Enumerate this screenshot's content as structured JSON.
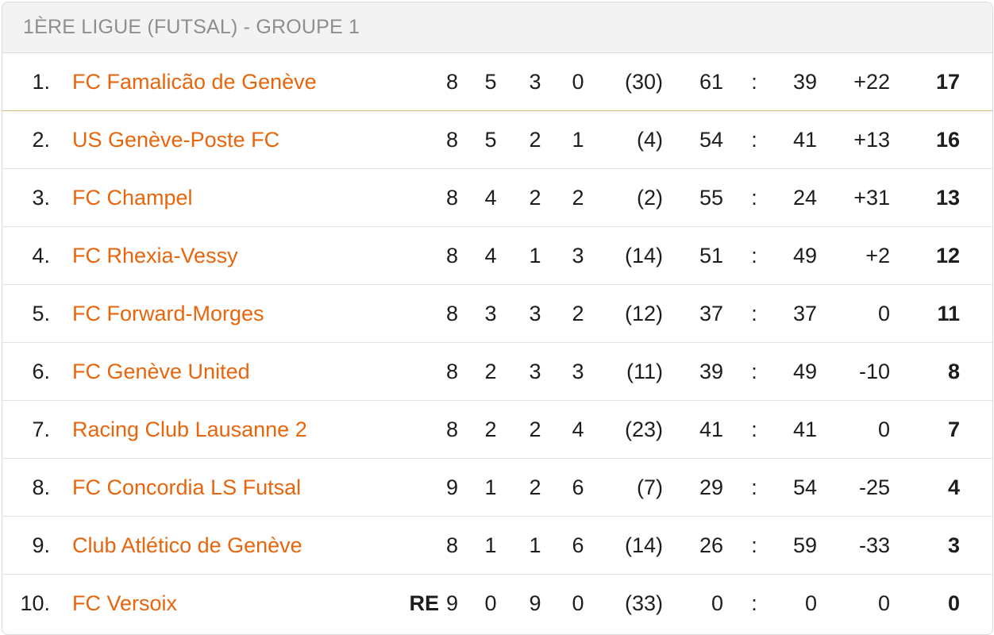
{
  "header": {
    "title": "1ÈRE LIGUE (FUTSAL) - GROUPE 1"
  },
  "colors": {
    "team_link": "#e8650c",
    "header_text": "#8e8e8e",
    "header_bg": "#f3f3f3",
    "first_row_divider": "#d3b77a"
  },
  "standings": [
    {
      "rank": "1.",
      "team": "FC Famalicão de Genève",
      "badge": "",
      "played": "8",
      "won": "5",
      "drawn": "3",
      "lost": "0",
      "fair_play": "(30)",
      "goals_for": "61",
      "separator": ":",
      "goals_against": "39",
      "goal_diff": "+22",
      "points": "17"
    },
    {
      "rank": "2.",
      "team": "US Genève-Poste FC",
      "badge": "",
      "played": "8",
      "won": "5",
      "drawn": "2",
      "lost": "1",
      "fair_play": "(4)",
      "goals_for": "54",
      "separator": ":",
      "goals_against": "41",
      "goal_diff": "+13",
      "points": "16"
    },
    {
      "rank": "3.",
      "team": "FC Champel",
      "badge": "",
      "played": "8",
      "won": "4",
      "drawn": "2",
      "lost": "2",
      "fair_play": "(2)",
      "goals_for": "55",
      "separator": ":",
      "goals_against": "24",
      "goal_diff": "+31",
      "points": "13"
    },
    {
      "rank": "4.",
      "team": "FC Rhexia-Vessy",
      "badge": "",
      "played": "8",
      "won": "4",
      "drawn": "1",
      "lost": "3",
      "fair_play": "(14)",
      "goals_for": "51",
      "separator": ":",
      "goals_against": "49",
      "goal_diff": "+2",
      "points": "12"
    },
    {
      "rank": "5.",
      "team": "FC Forward-Morges",
      "badge": "",
      "played": "8",
      "won": "3",
      "drawn": "3",
      "lost": "2",
      "fair_play": "(12)",
      "goals_for": "37",
      "separator": ":",
      "goals_against": "37",
      "goal_diff": "0",
      "points": "11"
    },
    {
      "rank": "6.",
      "team": "FC Genève United",
      "badge": "",
      "played": "8",
      "won": "2",
      "drawn": "3",
      "lost": "3",
      "fair_play": "(11)",
      "goals_for": "39",
      "separator": ":",
      "goals_against": "49",
      "goal_diff": "-10",
      "points": "8"
    },
    {
      "rank": "7.",
      "team": "Racing Club Lausanne 2",
      "badge": "",
      "played": "8",
      "won": "2",
      "drawn": "2",
      "lost": "4",
      "fair_play": "(23)",
      "goals_for": "41",
      "separator": ":",
      "goals_against": "41",
      "goal_diff": "0",
      "points": "7"
    },
    {
      "rank": "8.",
      "team": "FC Concordia LS Futsal",
      "badge": "",
      "played": "9",
      "won": "1",
      "drawn": "2",
      "lost": "6",
      "fair_play": "(7)",
      "goals_for": "29",
      "separator": ":",
      "goals_against": "54",
      "goal_diff": "-25",
      "points": "4"
    },
    {
      "rank": "9.",
      "team": "Club Atlético de Genève",
      "badge": "",
      "played": "8",
      "won": "1",
      "drawn": "1",
      "lost": "6",
      "fair_play": "(14)",
      "goals_for": "26",
      "separator": ":",
      "goals_against": "59",
      "goal_diff": "-33",
      "points": "3"
    },
    {
      "rank": "10.",
      "team": "FC Versoix",
      "badge": "RE",
      "played": "9",
      "won": "0",
      "drawn": "9",
      "lost": "0",
      "fair_play": "(33)",
      "goals_for": "0",
      "separator": ":",
      "goals_against": "0",
      "goal_diff": "0",
      "points": "0"
    }
  ]
}
